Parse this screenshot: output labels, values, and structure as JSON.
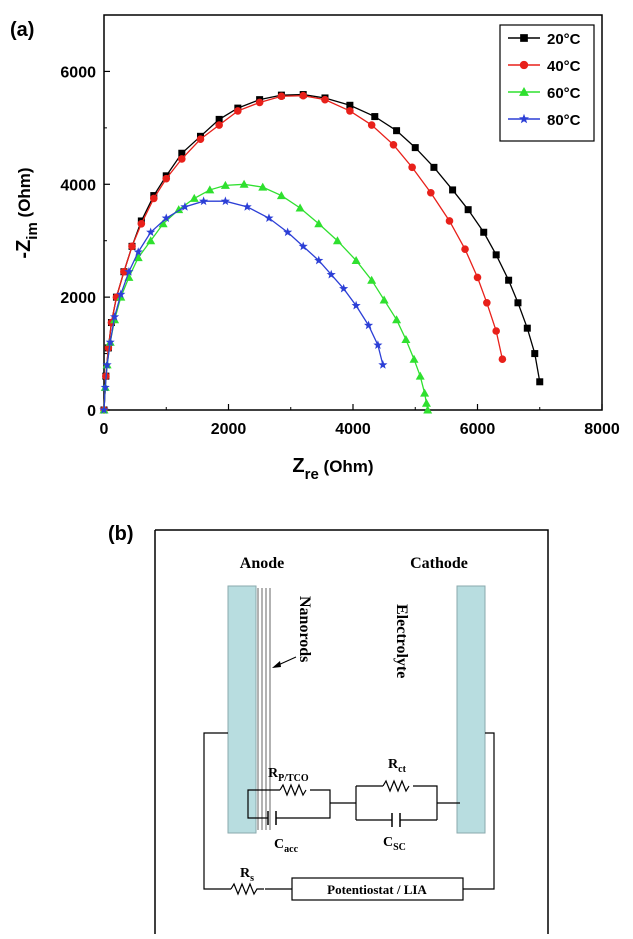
{
  "panel_a": {
    "label": "(a)",
    "xlabel_main": "Z",
    "xlabel_sub": "re",
    "xlabel_unit": " (Ohm)",
    "ylabel_main": "-Z",
    "ylabel_sub": "im",
    "ylabel_unit": " (Ohm)"
  },
  "chart_data": {
    "type": "scatter",
    "xlim": [
      0,
      8000
    ],
    "ylim": [
      0,
      7000
    ],
    "xticks": [
      0,
      2000,
      4000,
      6000,
      8000
    ],
    "yticks": [
      0,
      2000,
      4000,
      6000
    ],
    "grid": false,
    "legend_position": "top-right",
    "series": [
      {
        "name": "20°C",
        "color": "#000000",
        "marker": "square",
        "x": [
          0,
          30,
          70,
          120,
          200,
          320,
          450,
          600,
          800,
          1000,
          1250,
          1550,
          1850,
          2150,
          2500,
          2850,
          3200,
          3550,
          3950,
          4350,
          4700,
          5000,
          5300,
          5600,
          5850,
          6100,
          6300,
          6500,
          6650,
          6800,
          6920,
          7000
        ],
        "y": [
          0,
          600,
          1100,
          1550,
          2000,
          2450,
          2900,
          3350,
          3800,
          4150,
          4550,
          4850,
          5150,
          5350,
          5500,
          5580,
          5590,
          5530,
          5400,
          5200,
          4950,
          4650,
          4300,
          3900,
          3550,
          3150,
          2750,
          2300,
          1900,
          1450,
          1000,
          500
        ]
      },
      {
        "name": "40°C",
        "color": "#e8201a",
        "marker": "circle",
        "x": [
          0,
          30,
          70,
          120,
          200,
          320,
          450,
          600,
          800,
          1000,
          1250,
          1550,
          1850,
          2150,
          2500,
          2850,
          3200,
          3550,
          3950,
          4300,
          4650,
          4950,
          5250,
          5550,
          5800,
          6000,
          6150,
          6300,
          6400
        ],
        "y": [
          0,
          600,
          1100,
          1550,
          2000,
          2450,
          2900,
          3300,
          3750,
          4100,
          4450,
          4800,
          5050,
          5300,
          5450,
          5560,
          5570,
          5500,
          5300,
          5050,
          4700,
          4300,
          3850,
          3350,
          2850,
          2350,
          1900,
          1400,
          900
        ]
      },
      {
        "name": "60°C",
        "color": "#2fe02f",
        "marker": "triangle",
        "x": [
          0,
          20,
          50,
          100,
          170,
          270,
          400,
          550,
          750,
          950,
          1200,
          1450,
          1700,
          1950,
          2250,
          2550,
          2850,
          3150,
          3450,
          3750,
          4050,
          4300,
          4500,
          4700,
          4850,
          4980,
          5080,
          5150,
          5180,
          5200
        ],
        "y": [
          0,
          400,
          800,
          1200,
          1600,
          2000,
          2350,
          2700,
          3000,
          3300,
          3550,
          3750,
          3900,
          3980,
          4000,
          3950,
          3800,
          3580,
          3300,
          3000,
          2650,
          2300,
          1950,
          1600,
          1250,
          900,
          600,
          300,
          120,
          0
        ]
      },
      {
        "name": "80°C",
        "color": "#2c3fd6",
        "marker": "star",
        "x": [
          0,
          20,
          50,
          100,
          170,
          270,
          400,
          550,
          750,
          1000,
          1300,
          1600,
          1950,
          2300,
          2650,
          2950,
          3200,
          3450,
          3650,
          3850,
          4050,
          4250,
          4400,
          4480
        ],
        "y": [
          0,
          400,
          800,
          1200,
          1650,
          2050,
          2450,
          2800,
          3150,
          3400,
          3600,
          3700,
          3700,
          3600,
          3400,
          3150,
          2900,
          2650,
          2400,
          2150,
          1850,
          1500,
          1150,
          800
        ]
      }
    ]
  },
  "panel_b": {
    "label": "(b)",
    "anode": "Anode",
    "cathode": "Cathode",
    "nanorods": "Nanorods",
    "electrolyte": "Electrolyte",
    "r_ptco_main": "R",
    "r_ptco_sub": "P/TCO",
    "c_acc_main": "C",
    "c_acc_sub": "acc",
    "r_ct_main": "R",
    "r_ct_sub": "ct",
    "c_sc_main": "C",
    "c_sc_sub": "SC",
    "r_s_main": "R",
    "r_s_sub": "s",
    "instrument": "Potentiostat / LIA",
    "electrode_color": "#b8dde0"
  }
}
